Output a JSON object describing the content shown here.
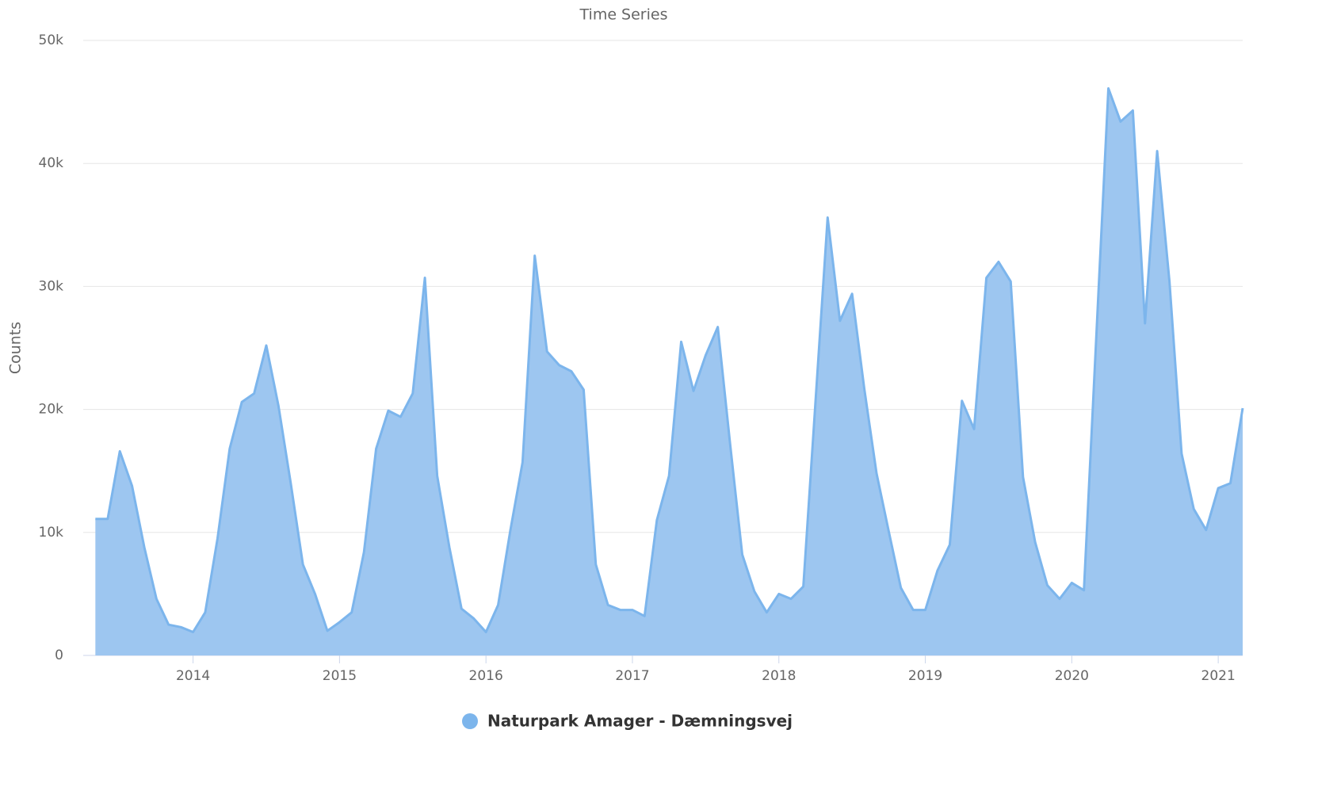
{
  "chart_data": {
    "type": "area",
    "title": "Time Series",
    "y_label": "Counts",
    "x": [
      2013.333,
      2013.417,
      2013.5,
      2013.583,
      2013.667,
      2013.75,
      2013.833,
      2013.917,
      2014,
      2014.083,
      2014.167,
      2014.25,
      2014.333,
      2014.417,
      2014.5,
      2014.583,
      2014.667,
      2014.75,
      2014.833,
      2014.917,
      2015,
      2015.083,
      2015.167,
      2015.25,
      2015.333,
      2015.417,
      2015.5,
      2015.583,
      2015.667,
      2015.75,
      2015.833,
      2015.917,
      2016,
      2016.083,
      2016.167,
      2016.25,
      2016.333,
      2016.417,
      2016.5,
      2016.583,
      2016.667,
      2016.75,
      2016.833,
      2016.917,
      2017,
      2017.083,
      2017.167,
      2017.25,
      2017.333,
      2017.417,
      2017.5,
      2017.583,
      2017.667,
      2017.75,
      2017.833,
      2017.917,
      2018,
      2018.083,
      2018.167,
      2018.25,
      2018.333,
      2018.417,
      2018.5,
      2018.583,
      2018.667,
      2018.75,
      2018.833,
      2018.917,
      2019,
      2019.083,
      2019.167,
      2019.25,
      2019.333,
      2019.417,
      2019.5,
      2019.583,
      2019.667,
      2019.75,
      2019.833,
      2019.917,
      2020,
      2020.083,
      2020.167,
      2020.25,
      2020.333,
      2020.417,
      2020.5,
      2020.583,
      2020.667,
      2020.75,
      2020.833,
      2020.917,
      2021,
      2021.083,
      2021.167
    ],
    "series": [
      {
        "name": "Naturpark Amager - Dæmningsvej",
        "color": "#7cb5ec",
        "fill": "#9dc6f0",
        "values": [
          11100,
          11100,
          16600,
          13800,
          8800,
          4600,
          2500,
          2300,
          1900,
          3500,
          9500,
          16800,
          20600,
          21300,
          25200,
          20300,
          14000,
          7400,
          5000,
          2000,
          2700,
          3500,
          8400,
          16800,
          19900,
          19400,
          21300,
          30700,
          14600,
          8800,
          3800,
          3000,
          1900,
          4100,
          10200,
          15700,
          32500,
          24700,
          23600,
          23100,
          21600,
          7400,
          4100,
          3700,
          3700,
          3200,
          11000,
          14600,
          25500,
          21500,
          24400,
          26700,
          17200,
          8200,
          5200,
          3500,
          5000,
          4600,
          5600,
          20600,
          35600,
          27200,
          29400,
          21700,
          14800,
          10100,
          5500,
          3700,
          3700,
          6900,
          9000,
          20700,
          18400,
          30700,
          32000,
          30400,
          14500,
          9200,
          5700,
          4600,
          5900,
          5300,
          25800,
          46100,
          43400,
          44300,
          27000,
          41000,
          30400,
          16400,
          11900,
          10200,
          13600,
          14000,
          20100
        ]
      }
    ],
    "xlim": [
      2013.25,
      2021.167
    ],
    "xticks": [
      2014,
      2015,
      2016,
      2017,
      2018,
      2019,
      2020,
      2021
    ],
    "ylim": [
      0,
      50000
    ],
    "yticks": [
      0,
      {
        "value": 10000,
        "label": "10k"
      },
      {
        "value": 20000,
        "label": "20k"
      },
      {
        "value": 30000,
        "label": "30k"
      },
      {
        "value": 40000,
        "label": "40k"
      },
      {
        "value": 50000,
        "label": "50k"
      }
    ],
    "grid": true
  }
}
